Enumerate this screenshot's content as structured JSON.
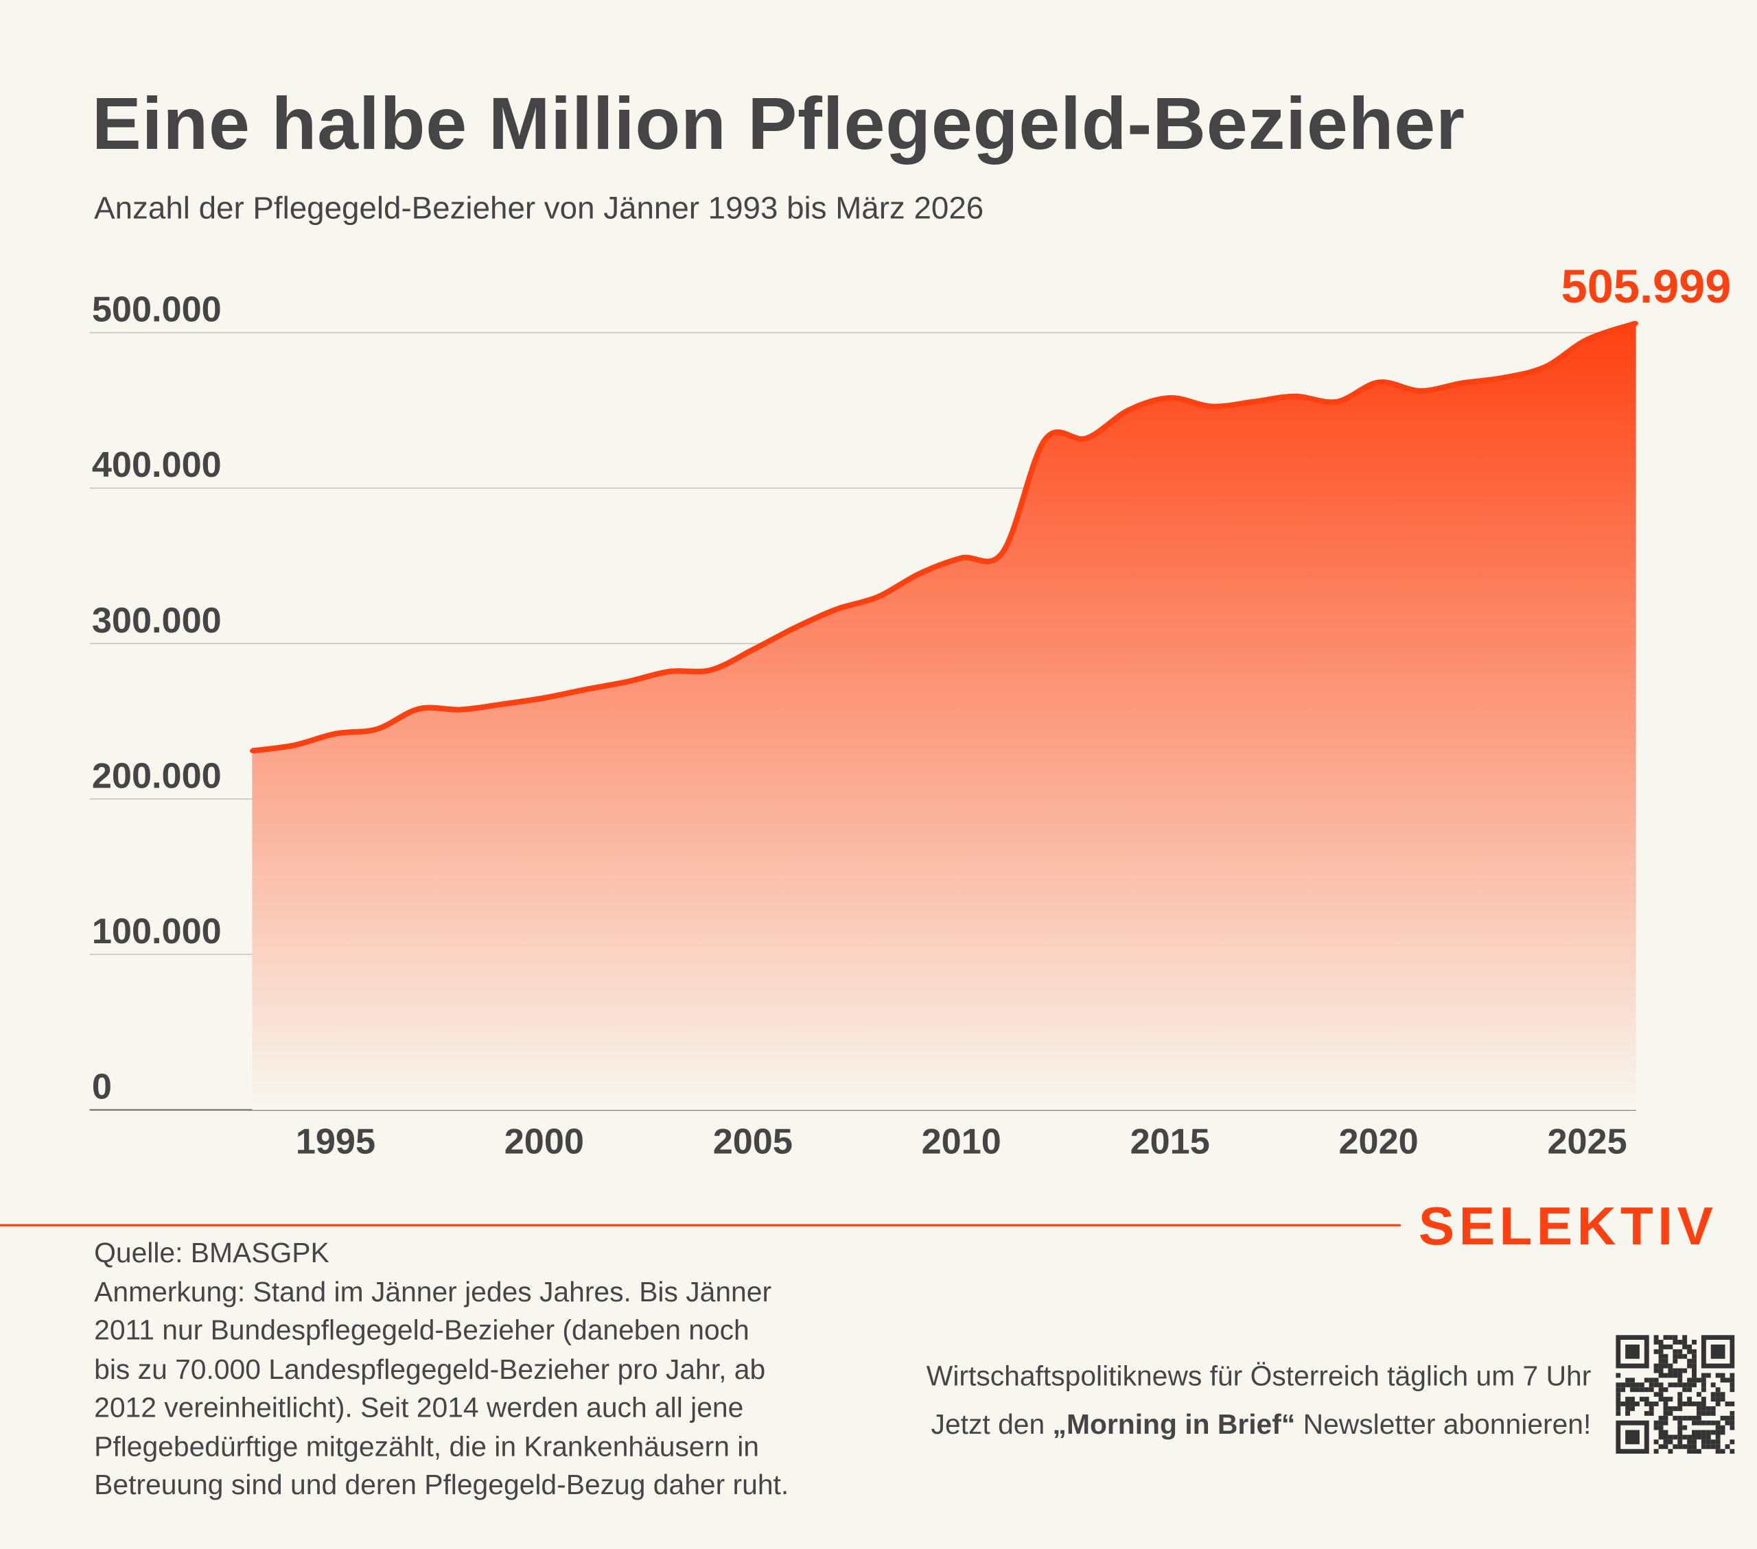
{
  "header": {
    "title": "Eine halbe Million Pflegegeld-Bezieher",
    "subtitle": "Anzahl der Pflegegeld-Bezieher von Jänner 1993 bis März 2026"
  },
  "chart_data": {
    "type": "area",
    "title": "Eine halbe Million Pflegegeld-Bezieher",
    "subtitle": "Anzahl der Pflegegeld-Bezieher von Jänner 1993 bis März 2026",
    "xlabel": "",
    "ylabel": "",
    "x": [
      1993,
      1994,
      1995,
      1996,
      1997,
      1998,
      1999,
      2000,
      2001,
      2002,
      2003,
      2004,
      2005,
      2006,
      2007,
      2008,
      2009,
      2010,
      2011,
      2012,
      2013,
      2014,
      2015,
      2016,
      2017,
      2018,
      2019,
      2020,
      2021,
      2022,
      2023,
      2024,
      2025,
      2026.17
    ],
    "series": [
      {
        "name": "Pflegegeld-Bezieher",
        "values": [
          231000,
          234500,
          242000,
          245000,
          258000,
          257500,
          261000,
          265000,
          270500,
          275500,
          282000,
          283000,
          296000,
          310000,
          322000,
          330000,
          345000,
          355000,
          359000,
          431000,
          432000,
          450000,
          458000,
          452500,
          455500,
          459000,
          455500,
          468000,
          462500,
          467500,
          471000,
          478000,
          495500,
          505999
        ]
      }
    ],
    "xlim": [
      1993,
      2026.17
    ],
    "ylim": [
      0,
      500000
    ],
    "yticks": [
      0,
      100000,
      200000,
      300000,
      400000,
      500000
    ],
    "ytick_labels": [
      "0",
      "100.000",
      "200.000",
      "300.000",
      "400.000",
      "500.000"
    ],
    "xticks": [
      1995,
      2000,
      2005,
      2010,
      2015,
      2020,
      2025
    ],
    "xtick_labels": [
      "1995",
      "2000",
      "2005",
      "2010",
      "2015",
      "2020",
      "2025"
    ],
    "end_label": "505.999",
    "grid": true,
    "colors": {
      "line": "#ff4010",
      "fill_top": "#ff4010",
      "fill_bottom": "#f8f7ef"
    }
  },
  "footer": {
    "logo": "SELEKTIV",
    "source": "Quelle: BMASGPK",
    "note": "Anmerkung: Stand im Jänner jedes Jahres. Bis Jänner 2011 nur Bundespflegegeld-Bezieher (daneben noch bis zu 70.000 Landespflegegeld-Bezieher pro Jahr, ab 2012 vereinheitlicht). Seit 2014 werden auch all jene Pflegebedürftige mitgezählt, die in Krankenhäusern in Betreuung sind und deren Pflegegeld-Bezug daher ruht.",
    "promo_line1": "Wirtschaftspolitiknews für Österreich täglich um 7 Uhr",
    "promo_line2_pre": "Jetzt den ",
    "promo_line2_bold": "„Morning in Brief“",
    "promo_line2_post": " Newsletter abonnieren!"
  }
}
